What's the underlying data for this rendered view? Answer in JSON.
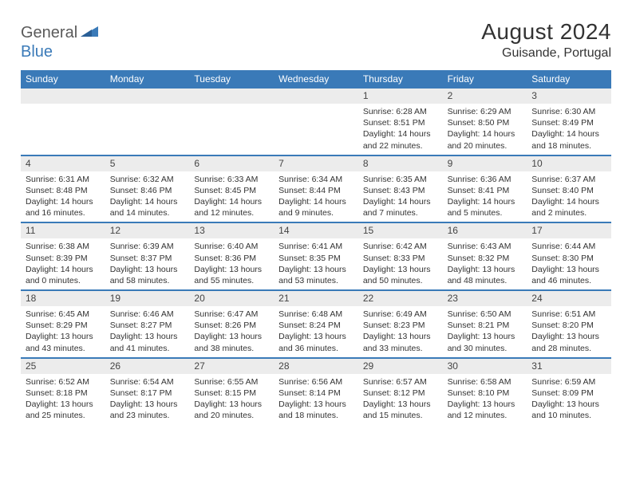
{
  "logo": {
    "text1": "General",
    "text2": "Blue"
  },
  "title": "August 2024",
  "location": "Guisande, Portugal",
  "colors": {
    "header_bg": "#3a7ab8",
    "daynum_bg": "#ececec",
    "rule": "#3a7ab8",
    "text": "#333333"
  },
  "dayNames": [
    "Sunday",
    "Monday",
    "Tuesday",
    "Wednesday",
    "Thursday",
    "Friday",
    "Saturday"
  ],
  "weeks": [
    [
      null,
      null,
      null,
      null,
      {
        "n": "1",
        "sr": "6:28 AM",
        "ss": "8:51 PM",
        "dl": "14 hours and 22 minutes."
      },
      {
        "n": "2",
        "sr": "6:29 AM",
        "ss": "8:50 PM",
        "dl": "14 hours and 20 minutes."
      },
      {
        "n": "3",
        "sr": "6:30 AM",
        "ss": "8:49 PM",
        "dl": "14 hours and 18 minutes."
      }
    ],
    [
      {
        "n": "4",
        "sr": "6:31 AM",
        "ss": "8:48 PM",
        "dl": "14 hours and 16 minutes."
      },
      {
        "n": "5",
        "sr": "6:32 AM",
        "ss": "8:46 PM",
        "dl": "14 hours and 14 minutes."
      },
      {
        "n": "6",
        "sr": "6:33 AM",
        "ss": "8:45 PM",
        "dl": "14 hours and 12 minutes."
      },
      {
        "n": "7",
        "sr": "6:34 AM",
        "ss": "8:44 PM",
        "dl": "14 hours and 9 minutes."
      },
      {
        "n": "8",
        "sr": "6:35 AM",
        "ss": "8:43 PM",
        "dl": "14 hours and 7 minutes."
      },
      {
        "n": "9",
        "sr": "6:36 AM",
        "ss": "8:41 PM",
        "dl": "14 hours and 5 minutes."
      },
      {
        "n": "10",
        "sr": "6:37 AM",
        "ss": "8:40 PM",
        "dl": "14 hours and 2 minutes."
      }
    ],
    [
      {
        "n": "11",
        "sr": "6:38 AM",
        "ss": "8:39 PM",
        "dl": "14 hours and 0 minutes."
      },
      {
        "n": "12",
        "sr": "6:39 AM",
        "ss": "8:37 PM",
        "dl": "13 hours and 58 minutes."
      },
      {
        "n": "13",
        "sr": "6:40 AM",
        "ss": "8:36 PM",
        "dl": "13 hours and 55 minutes."
      },
      {
        "n": "14",
        "sr": "6:41 AM",
        "ss": "8:35 PM",
        "dl": "13 hours and 53 minutes."
      },
      {
        "n": "15",
        "sr": "6:42 AM",
        "ss": "8:33 PM",
        "dl": "13 hours and 50 minutes."
      },
      {
        "n": "16",
        "sr": "6:43 AM",
        "ss": "8:32 PM",
        "dl": "13 hours and 48 minutes."
      },
      {
        "n": "17",
        "sr": "6:44 AM",
        "ss": "8:30 PM",
        "dl": "13 hours and 46 minutes."
      }
    ],
    [
      {
        "n": "18",
        "sr": "6:45 AM",
        "ss": "8:29 PM",
        "dl": "13 hours and 43 minutes."
      },
      {
        "n": "19",
        "sr": "6:46 AM",
        "ss": "8:27 PM",
        "dl": "13 hours and 41 minutes."
      },
      {
        "n": "20",
        "sr": "6:47 AM",
        "ss": "8:26 PM",
        "dl": "13 hours and 38 minutes."
      },
      {
        "n": "21",
        "sr": "6:48 AM",
        "ss": "8:24 PM",
        "dl": "13 hours and 36 minutes."
      },
      {
        "n": "22",
        "sr": "6:49 AM",
        "ss": "8:23 PM",
        "dl": "13 hours and 33 minutes."
      },
      {
        "n": "23",
        "sr": "6:50 AM",
        "ss": "8:21 PM",
        "dl": "13 hours and 30 minutes."
      },
      {
        "n": "24",
        "sr": "6:51 AM",
        "ss": "8:20 PM",
        "dl": "13 hours and 28 minutes."
      }
    ],
    [
      {
        "n": "25",
        "sr": "6:52 AM",
        "ss": "8:18 PM",
        "dl": "13 hours and 25 minutes."
      },
      {
        "n": "26",
        "sr": "6:54 AM",
        "ss": "8:17 PM",
        "dl": "13 hours and 23 minutes."
      },
      {
        "n": "27",
        "sr": "6:55 AM",
        "ss": "8:15 PM",
        "dl": "13 hours and 20 minutes."
      },
      {
        "n": "28",
        "sr": "6:56 AM",
        "ss": "8:14 PM",
        "dl": "13 hours and 18 minutes."
      },
      {
        "n": "29",
        "sr": "6:57 AM",
        "ss": "8:12 PM",
        "dl": "13 hours and 15 minutes."
      },
      {
        "n": "30",
        "sr": "6:58 AM",
        "ss": "8:10 PM",
        "dl": "13 hours and 12 minutes."
      },
      {
        "n": "31",
        "sr": "6:59 AM",
        "ss": "8:09 PM",
        "dl": "13 hours and 10 minutes."
      }
    ]
  ]
}
